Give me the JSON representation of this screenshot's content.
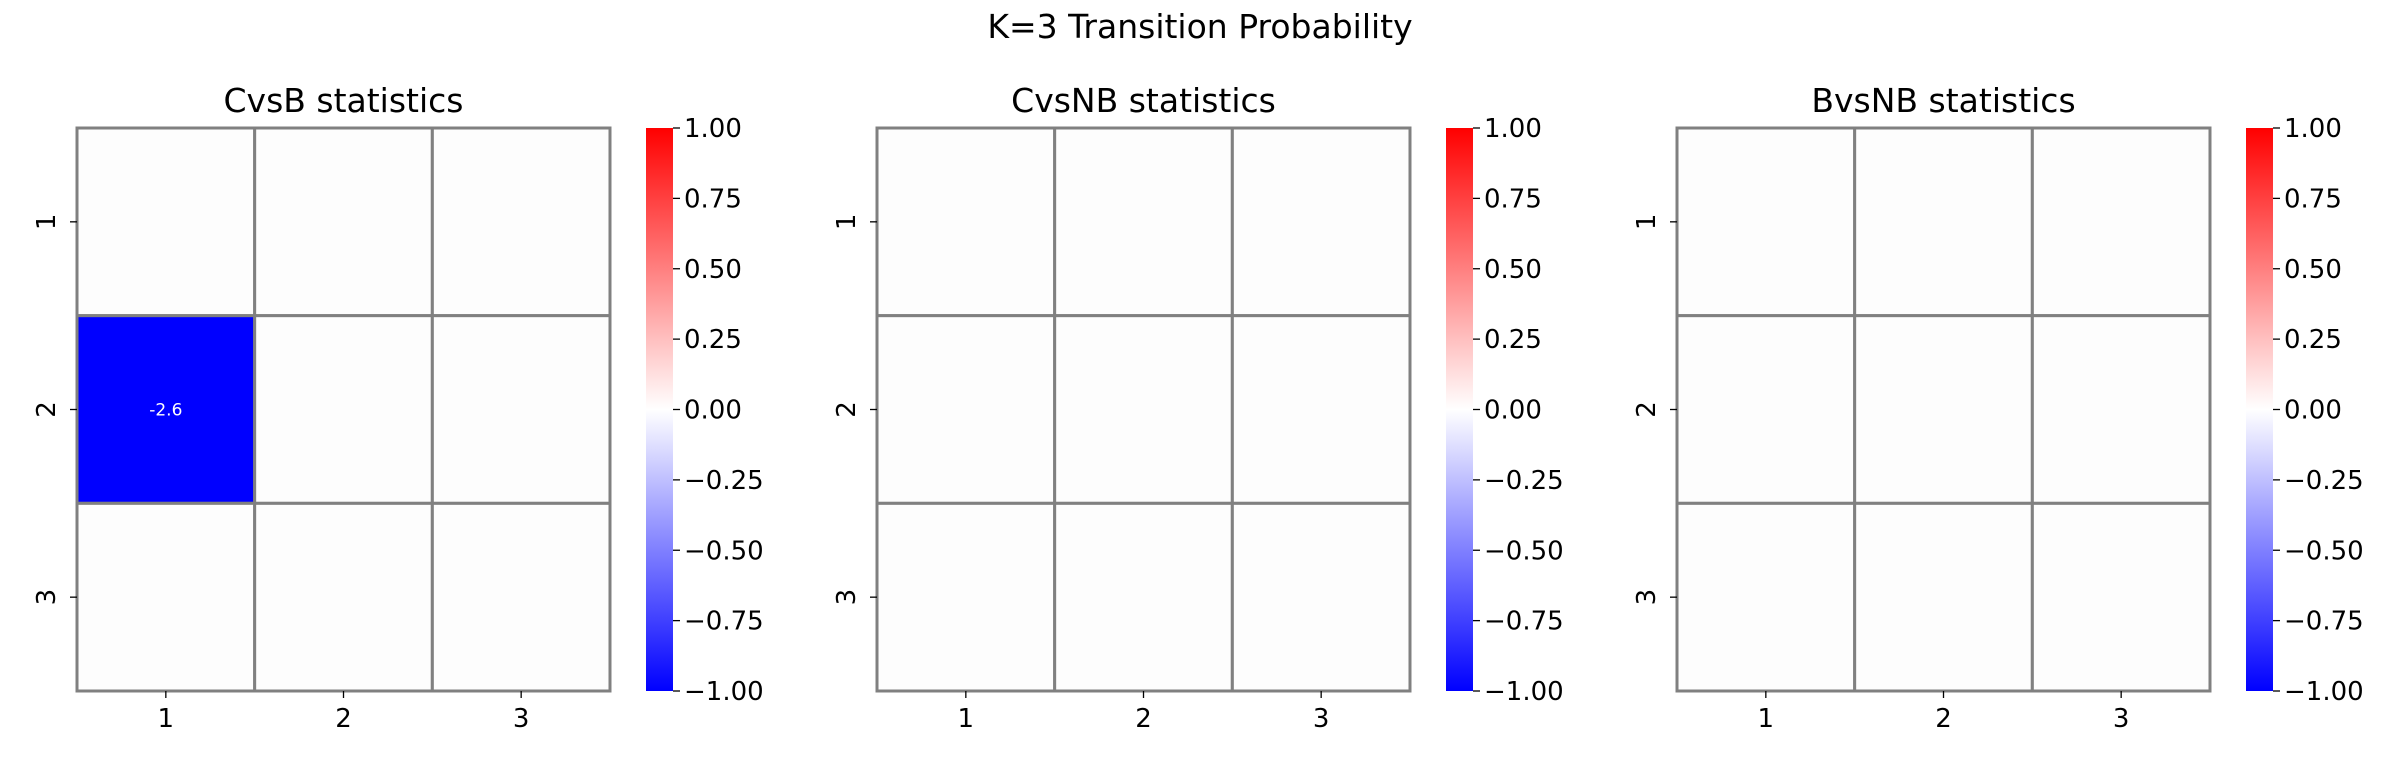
{
  "figure": {
    "suptitle": "K=3 Transition Probability"
  },
  "colormap": {
    "name": "bwr",
    "low_color": "#0000ff",
    "mid_color": "#ffffff",
    "high_color": "#ff0000",
    "empty_cell_color": "#fdfdfd",
    "grid_line_color": "#808080",
    "annotation_color": "#ffffff"
  },
  "chart_data": [
    {
      "type": "heatmap",
      "title": "CvsB statistics",
      "x_categories": [
        "1",
        "2",
        "3"
      ],
      "y_categories": [
        "1",
        "2",
        "3"
      ],
      "values": [
        [
          null,
          null,
          null
        ],
        [
          -2.6,
          null,
          null
        ],
        [
          null,
          null,
          null
        ]
      ],
      "annotations": [
        [
          null,
          null,
          null
        ],
        [
          "-2.6",
          null,
          null
        ],
        [
          null,
          null,
          null
        ]
      ],
      "colorbar": {
        "vmin": -1.0,
        "vmax": 1.0,
        "ticks": [
          "1.00",
          "0.75",
          "0.50",
          "0.25",
          "0.00",
          "−0.25",
          "−0.50",
          "−0.75",
          "−1.00"
        ]
      }
    },
    {
      "type": "heatmap",
      "title": "CvsNB statistics",
      "x_categories": [
        "1",
        "2",
        "3"
      ],
      "y_categories": [
        "1",
        "2",
        "3"
      ],
      "values": [
        [
          null,
          null,
          null
        ],
        [
          null,
          null,
          null
        ],
        [
          null,
          null,
          null
        ]
      ],
      "annotations": [
        [
          null,
          null,
          null
        ],
        [
          null,
          null,
          null
        ],
        [
          null,
          null,
          null
        ]
      ],
      "colorbar": {
        "vmin": -1.0,
        "vmax": 1.0,
        "ticks": [
          "1.00",
          "0.75",
          "0.50",
          "0.25",
          "0.00",
          "−0.25",
          "−0.50",
          "−0.75",
          "−1.00"
        ]
      }
    },
    {
      "type": "heatmap",
      "title": "BvsNB statistics",
      "x_categories": [
        "1",
        "2",
        "3"
      ],
      "y_categories": [
        "1",
        "2",
        "3"
      ],
      "values": [
        [
          null,
          null,
          null
        ],
        [
          null,
          null,
          null
        ],
        [
          null,
          null,
          null
        ]
      ],
      "annotations": [
        [
          null,
          null,
          null
        ],
        [
          null,
          null,
          null
        ],
        [
          null,
          null,
          null
        ]
      ],
      "colorbar": {
        "vmin": -1.0,
        "vmax": 1.0,
        "ticks": [
          "1.00",
          "0.75",
          "0.50",
          "0.25",
          "0.00",
          "−0.25",
          "−0.50",
          "−0.75",
          "−1.00"
        ]
      }
    }
  ]
}
